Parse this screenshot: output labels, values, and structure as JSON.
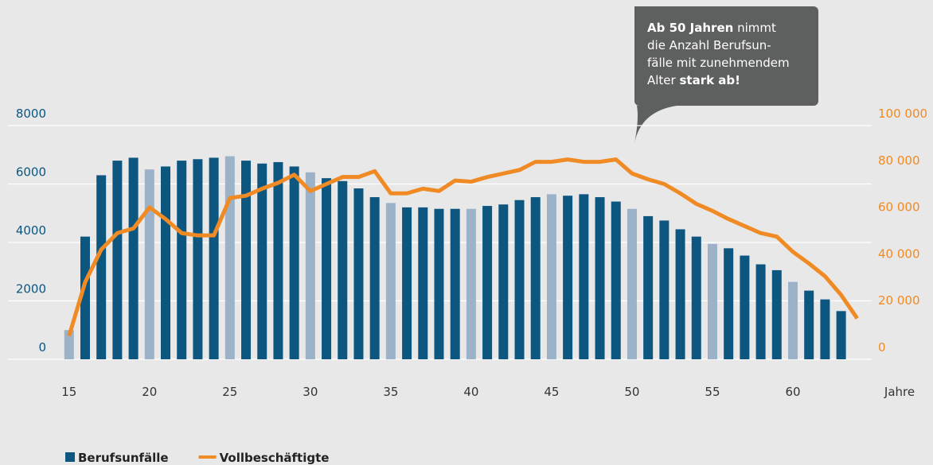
{
  "chart_data": {
    "type": "bar_line",
    "x": [
      15,
      16,
      17,
      18,
      19,
      20,
      21,
      22,
      23,
      24,
      25,
      26,
      27,
      28,
      29,
      30,
      31,
      32,
      33,
      34,
      35,
      36,
      37,
      38,
      39,
      40,
      41,
      42,
      43,
      44,
      45,
      46,
      47,
      48,
      49,
      50,
      51,
      52,
      53,
      54,
      55,
      56,
      57,
      58,
      59,
      60,
      61,
      62,
      63,
      64
    ],
    "xlim": [
      11.2,
      64.9
    ],
    "xticks": [
      15,
      20,
      25,
      30,
      35,
      40,
      45,
      50,
      55,
      60
    ],
    "xlabel": "Jahre",
    "ylim": [
      0,
      8000
    ],
    "yticks": [
      0,
      2000,
      4000,
      6000,
      8000
    ],
    "y2lim": [
      0,
      100000
    ],
    "y2ticks": [
      0,
      {
        "value": 20000,
        "label": "20 000"
      },
      {
        "value": 40000,
        "label": "40 000"
      },
      {
        "value": 60000,
        "label": "60 000"
      },
      {
        "value": 80000,
        "label": "80 000"
      },
      {
        "value": 100000,
        "label": "100 000"
      }
    ],
    "grid": true,
    "series": [
      {
        "name": "Berufsunfälle",
        "kind": "bar",
        "color": "#0d5680",
        "colors": [
          "#9bb2c8",
          "#0d5680",
          "#0d5680",
          "#0d5680",
          "#0d5680",
          "#9bb2c8",
          "#0d5680",
          "#0d5680",
          "#0d5680",
          "#0d5680",
          "#9bb2c8",
          "#0d5680",
          "#0d5680",
          "#0d5680",
          "#0d5680",
          "#9bb2c8",
          "#0d5680",
          "#0d5680",
          "#0d5680",
          "#0d5680",
          "#9bb2c8",
          "#0d5680",
          "#0d5680",
          "#0d5680",
          "#0d5680",
          "#9bb2c8",
          "#0d5680",
          "#0d5680",
          "#0d5680",
          "#0d5680",
          "#9bb2c8",
          "#0d5680",
          "#0d5680",
          "#0d5680",
          "#0d5680",
          "#9bb2c8",
          "#0d5680",
          "#0d5680",
          "#0d5680",
          "#0d5680",
          "#9bb2c8",
          "#0d5680",
          "#0d5680",
          "#0d5680",
          "#0d5680",
          "#9bb2c8",
          "#0d5680",
          "#0d5680",
          "#0d5680",
          null
        ],
        "values": [
          1000,
          4200,
          6300,
          6800,
          6900,
          6500,
          6600,
          6800,
          6850,
          6900,
          6950,
          6800,
          6700,
          6750,
          6600,
          6400,
          6200,
          6100,
          5850,
          5550,
          5350,
          5200,
          5200,
          5150,
          5150,
          5150,
          5250,
          5300,
          5450,
          5550,
          5650,
          5600,
          5650,
          5550,
          5400,
          5150,
          4900,
          4750,
          4450,
          4200,
          3950,
          3800,
          3550,
          3250,
          3050,
          2650,
          2350,
          2050,
          1650,
          null
        ]
      },
      {
        "name": "Vollbeschäftigte",
        "kind": "line",
        "axis": "y2",
        "color": "#f08a24",
        "values": [
          10000,
          33000,
          47000,
          54000,
          56000,
          65000,
          60000,
          54000,
          53000,
          53000,
          69000,
          70000,
          73000,
          75500,
          79000,
          72000,
          75000,
          78000,
          78000,
          80500,
          71000,
          71000,
          73000,
          72000,
          76500,
          76000,
          78000,
          79500,
          81000,
          84500,
          84500,
          85500,
          84500,
          84500,
          85500,
          79500,
          77000,
          75000,
          71000,
          66500,
          63500,
          60000,
          57000,
          54000,
          52500,
          46000,
          41000,
          35500,
          27500,
          17500
        ]
      }
    ],
    "annotation": {
      "lines": [
        [
          {
            "text": "Ab 50 Jahren",
            "bold": true
          },
          {
            "text": " nimmt",
            "bold": false
          }
        ],
        [
          {
            "text": "die Anzahl Berufsun-",
            "bold": false
          }
        ],
        [
          {
            "text": "fälle mit zunehmendem",
            "bold": false
          }
        ],
        [
          {
            "text": "Alter ",
            "bold": false
          },
          {
            "text": "stark ab!",
            "bold": true
          }
        ]
      ]
    }
  }
}
